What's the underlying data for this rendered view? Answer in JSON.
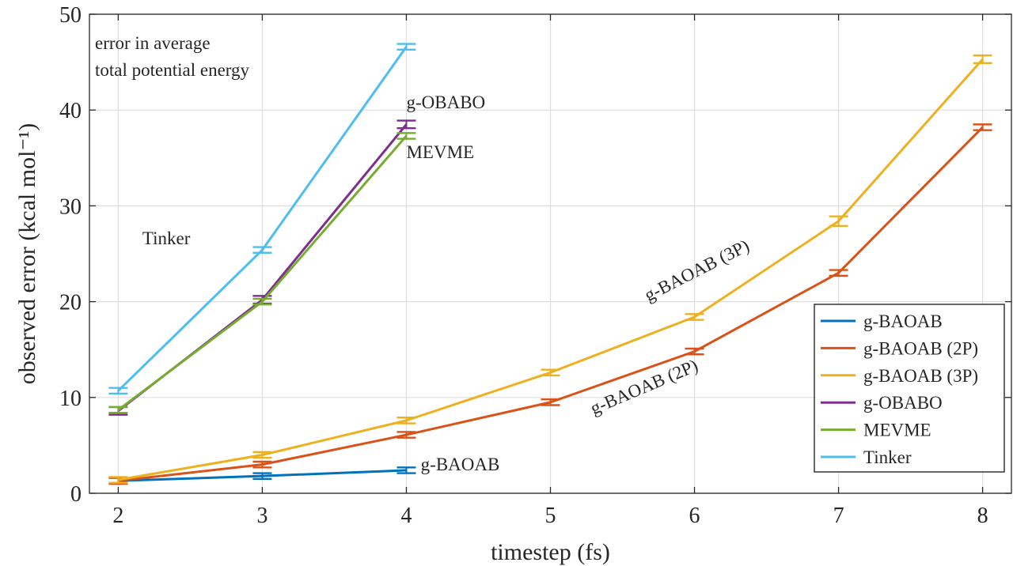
{
  "chart_data": {
    "type": "line",
    "xlabel": "timestep (fs)",
    "ylabel": "observed error (kcal mol⁻¹)",
    "xlim": [
      1.8,
      8.2
    ],
    "ylim": [
      0,
      50
    ],
    "xticks": [
      2,
      3,
      4,
      5,
      6,
      7,
      8
    ],
    "yticks": [
      0,
      10,
      20,
      30,
      40,
      50
    ],
    "grid": true,
    "legend_position": "bottom-right",
    "annotation": [
      "error in average",
      "total potential energy"
    ],
    "series": [
      {
        "name": "g-BAOAB",
        "color": "#0072BD",
        "x": [
          2,
          3,
          4
        ],
        "y": [
          1.3,
          1.8,
          2.4
        ],
        "err": [
          0.3,
          0.3,
          0.3
        ]
      },
      {
        "name": "g-BAOAB (2P)",
        "color": "#D95319",
        "x": [
          2,
          3,
          4,
          5,
          6,
          7,
          8
        ],
        "y": [
          1.3,
          3.0,
          6.1,
          9.5,
          14.8,
          23.0,
          38.2
        ],
        "err": [
          0.3,
          0.3,
          0.3,
          0.3,
          0.3,
          0.3,
          0.3
        ]
      },
      {
        "name": "g-BAOAB (3P)",
        "color": "#EDB120",
        "x": [
          2,
          3,
          4,
          5,
          6,
          7,
          8
        ],
        "y": [
          1.4,
          4.0,
          7.6,
          12.6,
          18.4,
          28.4,
          45.3
        ],
        "err": [
          0.3,
          0.3,
          0.3,
          0.3,
          0.3,
          0.5,
          0.4
        ]
      },
      {
        "name": "g-OBABO",
        "color": "#7E2F8E",
        "x": [
          2,
          3,
          4
        ],
        "y": [
          8.6,
          20.2,
          38.5
        ],
        "err": [
          0.4,
          0.4,
          0.4
        ]
      },
      {
        "name": "MEVME",
        "color": "#77AC30",
        "x": [
          2,
          3,
          4
        ],
        "y": [
          8.7,
          20.0,
          37.3
        ],
        "err": [
          0.3,
          0.3,
          0.3
        ]
      },
      {
        "name": "Tinker",
        "color": "#4DBEEE",
        "x": [
          2,
          3,
          4
        ],
        "y": [
          10.7,
          25.4,
          46.6
        ],
        "err": [
          0.3,
          0.3,
          0.3
        ]
      }
    ],
    "labels": [
      {
        "text": "g-OBABO",
        "x": 4.0,
        "y": 40.2
      },
      {
        "text": "MEVME",
        "x": 4.0,
        "y": 35.0
      },
      {
        "text": "Tinker",
        "x": 2.5,
        "y": 26.0
      },
      {
        "text": "g-BAOAB",
        "x": 4.1,
        "y": 2.4
      },
      {
        "text": "g-BAOAB (3P)",
        "x": 5.68,
        "y": 20.0
      },
      {
        "text": "g-BAOAB (2P)",
        "x": 5.3,
        "y": 8.2
      }
    ]
  }
}
